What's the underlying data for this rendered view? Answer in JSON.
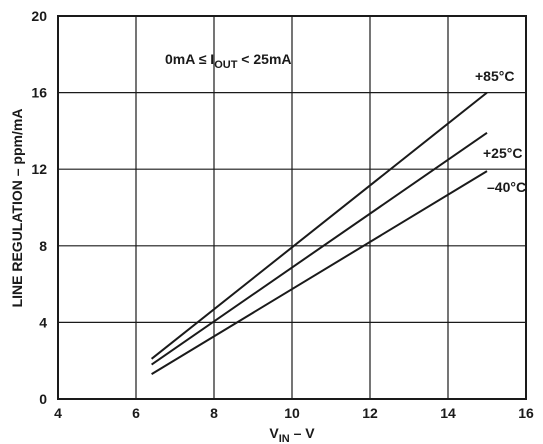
{
  "chart_data": {
    "type": "line",
    "title": "",
    "xlabel": {
      "main": "V",
      "sub": "IN",
      "tail": " – V"
    },
    "ylabel": "LINE REGULATION – ppm/mA",
    "xlim": [
      4,
      16
    ],
    "ylim": [
      0,
      20
    ],
    "xticks": [
      4,
      6,
      8,
      10,
      12,
      14,
      16
    ],
    "yticks": [
      0,
      4,
      8,
      12,
      16,
      20
    ],
    "grid": true,
    "condition": {
      "pre": "0mA ≤ I",
      "sub": "OUT",
      "post": " < 25mA"
    },
    "series": [
      {
        "name": "+85°C",
        "x": [
          6.4,
          15.0
        ],
        "y": [
          2.1,
          16.0
        ]
      },
      {
        "name": "+25°C",
        "x": [
          6.4,
          15.0
        ],
        "y": [
          1.8,
          13.9
        ]
      },
      {
        "name": "–40°C",
        "x": [
          6.4,
          15.0
        ],
        "y": [
          1.3,
          11.9
        ]
      }
    ]
  }
}
